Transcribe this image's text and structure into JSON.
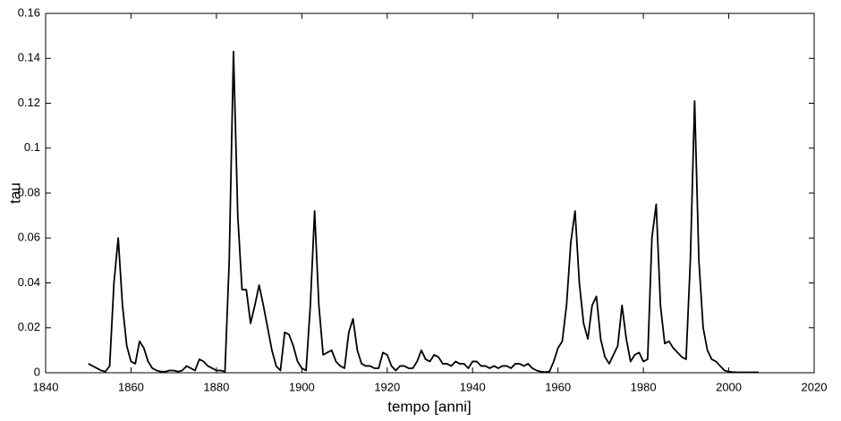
{
  "chart_data": {
    "type": "line",
    "x_label": "tempo [anni]",
    "y_label": "tau",
    "xlim": [
      1840,
      2020
    ],
    "xticks": [
      1840,
      1860,
      1880,
      1900,
      1920,
      1940,
      1960,
      1980,
      2000,
      2020
    ],
    "ylim": [
      0,
      0.16
    ],
    "yticks": [
      0,
      0.02,
      0.04,
      0.06,
      0.08,
      0.1,
      0.12,
      0.14,
      0.16
    ],
    "grid": false,
    "color": "#000000",
    "x": [
      1850,
      1851,
      1852,
      1853,
      1854,
      1855,
      1856,
      1857,
      1858,
      1859,
      1860,
      1861,
      1862,
      1863,
      1864,
      1865,
      1866,
      1867,
      1868,
      1869,
      1870,
      1871,
      1872,
      1873,
      1874,
      1875,
      1876,
      1877,
      1878,
      1879,
      1880,
      1881,
      1882,
      1883,
      1884,
      1885,
      1886,
      1887,
      1888,
      1889,
      1890,
      1891,
      1892,
      1893,
      1894,
      1895,
      1896,
      1897,
      1898,
      1899,
      1900,
      1901,
      1902,
      1903,
      1904,
      1905,
      1906,
      1907,
      1908,
      1909,
      1910,
      1911,
      1912,
      1913,
      1914,
      1915,
      1916,
      1917,
      1918,
      1919,
      1920,
      1921,
      1922,
      1923,
      1924,
      1925,
      1926,
      1927,
      1928,
      1929,
      1930,
      1931,
      1932,
      1933,
      1934,
      1935,
      1936,
      1937,
      1938,
      1939,
      1940,
      1941,
      1942,
      1943,
      1944,
      1945,
      1946,
      1947,
      1948,
      1949,
      1950,
      1951,
      1952,
      1953,
      1954,
      1955,
      1956,
      1957,
      1958,
      1959,
      1960,
      1961,
      1962,
      1963,
      1964,
      1965,
      1966,
      1967,
      1968,
      1969,
      1970,
      1971,
      1972,
      1973,
      1974,
      1975,
      1976,
      1977,
      1978,
      1979,
      1980,
      1981,
      1982,
      1983,
      1984,
      1985,
      1986,
      1987,
      1988,
      1989,
      1990,
      1991,
      1992,
      1993,
      1994,
      1995,
      1996,
      1997,
      1998,
      1999,
      2000,
      2001,
      2002,
      2003,
      2004,
      2005,
      2006,
      2007
    ],
    "values": [
      0.004,
      0.003,
      0.002,
      0.001,
      0.0005,
      0.003,
      0.04,
      0.06,
      0.03,
      0.012,
      0.005,
      0.004,
      0.014,
      0.011,
      0.005,
      0.002,
      0.001,
      0.0005,
      0.0005,
      0.001,
      0.001,
      0.0005,
      0.001,
      0.003,
      0.002,
      0.001,
      0.006,
      0.005,
      0.003,
      0.002,
      0.001,
      0.001,
      0.0005,
      0.05,
      0.143,
      0.07,
      0.037,
      0.037,
      0.022,
      0.03,
      0.039,
      0.03,
      0.02,
      0.01,
      0.003,
      0.001,
      0.018,
      0.017,
      0.012,
      0.005,
      0.002,
      0.001,
      0.03,
      0.072,
      0.03,
      0.008,
      0.009,
      0.01,
      0.005,
      0.003,
      0.002,
      0.018,
      0.024,
      0.01,
      0.004,
      0.003,
      0.003,
      0.002,
      0.002,
      0.009,
      0.008,
      0.003,
      0.001,
      0.003,
      0.003,
      0.002,
      0.002,
      0.005,
      0.01,
      0.006,
      0.005,
      0.008,
      0.007,
      0.004,
      0.004,
      0.003,
      0.005,
      0.004,
      0.004,
      0.002,
      0.005,
      0.005,
      0.003,
      0.003,
      0.002,
      0.003,
      0.002,
      0.003,
      0.003,
      0.002,
      0.004,
      0.004,
      0.003,
      0.004,
      0.002,
      0.001,
      0.0005,
      0.0003,
      0.0005,
      0.005,
      0.011,
      0.014,
      0.03,
      0.058,
      0.072,
      0.04,
      0.022,
      0.015,
      0.03,
      0.034,
      0.015,
      0.007,
      0.004,
      0.008,
      0.012,
      0.03,
      0.015,
      0.005,
      0.008,
      0.009,
      0.005,
      0.006,
      0.06,
      0.075,
      0.03,
      0.013,
      0.014,
      0.011,
      0.009,
      0.007,
      0.006,
      0.05,
      0.121,
      0.05,
      0.02,
      0.01,
      0.006,
      0.005,
      0.003,
      0.001,
      0.0005,
      0.0003,
      0.0002,
      0.0002,
      0.0002,
      0.0002,
      0.0002,
      0.0002
    ]
  }
}
